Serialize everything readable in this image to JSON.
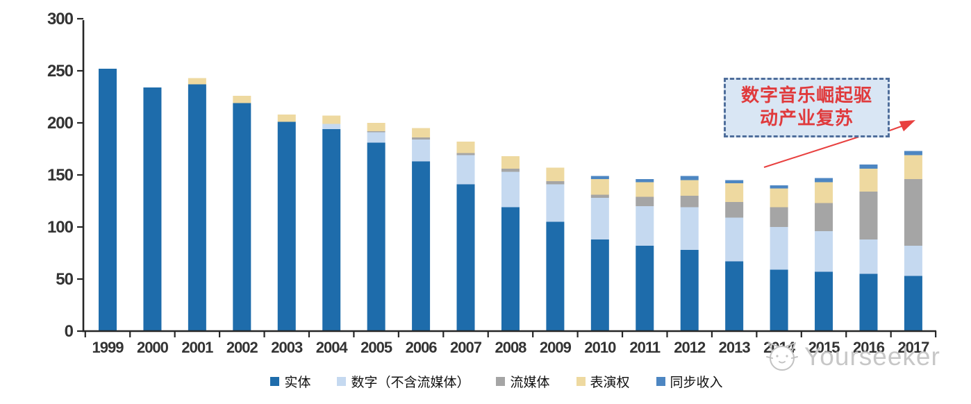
{
  "chart_data": {
    "type": "bar",
    "stacked": true,
    "title": "",
    "xlabel": "",
    "ylabel": "",
    "categories": [
      "1999",
      "2000",
      "2001",
      "2002",
      "2003",
      "2004",
      "2005",
      "2006",
      "2007",
      "2008",
      "2009",
      "2010",
      "2011",
      "2012",
      "2013",
      "2014",
      "2015",
      "2016",
      "2017"
    ],
    "series": [
      {
        "key": "physical",
        "name": "实体",
        "color": "#1E6CAB",
        "values": [
          252,
          234,
          237,
          219,
          201,
          194,
          181,
          163,
          141,
          119,
          105,
          88,
          82,
          78,
          67,
          59,
          57,
          55,
          53
        ]
      },
      {
        "key": "digital",
        "name": "数字（不含流媒体）",
        "color": "#C5D9F0",
        "values": [
          0,
          0,
          0,
          0,
          0,
          5,
          10,
          21,
          28,
          34,
          36,
          40,
          38,
          41,
          42,
          41,
          39,
          33,
          29
        ]
      },
      {
        "key": "streaming",
        "name": "流媒体",
        "color": "#A5A5A5",
        "values": [
          0,
          0,
          0,
          0,
          0,
          0,
          1,
          2,
          2,
          3,
          3,
          3,
          9,
          11,
          15,
          19,
          27,
          46,
          64
        ]
      },
      {
        "key": "performance",
        "name": "表演权",
        "color": "#EED9A0",
        "values": [
          0,
          0,
          6,
          7,
          7,
          8,
          8,
          9,
          11,
          12,
          13,
          15,
          14,
          15,
          18,
          18,
          20,
          22,
          23
        ]
      },
      {
        "key": "sync",
        "name": "同步收入",
        "color": "#4D86C2",
        "values": [
          0,
          0,
          0,
          0,
          0,
          0,
          0,
          0,
          0,
          0,
          0,
          3,
          3,
          4,
          3,
          3,
          4,
          4,
          4
        ]
      }
    ],
    "ylim": [
      0,
      300
    ],
    "yticks": [
      0,
      50,
      100,
      150,
      200,
      250,
      300
    ],
    "grid": false,
    "legend_position": "bottom"
  },
  "annotation": {
    "line1": "数字音乐崛起驱",
    "line2": "动产业复苏",
    "text_color": "#E03A3C",
    "box_fill": "#D9E6F4",
    "border_color": "#4F6E9B",
    "arrow_color": "#E8403F"
  },
  "watermark": {
    "text": "Yourseeker",
    "color": "#C7C7C7"
  },
  "colors": {
    "axis": "#262626",
    "label": "#333333",
    "background": "#FFFFFF"
  }
}
